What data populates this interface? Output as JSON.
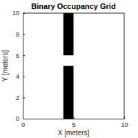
{
  "chart_data": {
    "type": "occupancy_grid",
    "title": "Binary Occupancy Grid",
    "x_label": "X [meters]",
    "y_label": "Y [meters]",
    "cells": [
      {
        "x": [
          4,
          5
        ],
        "y": [
          6,
          10
        ]
      },
      {
        "x": [
          4,
          5
        ],
        "y": [
          0,
          5
        ]
      }
    ],
    "color": "#000000",
    "xlim": [
      0,
      10
    ],
    "ylim": [
      0,
      10
    ],
    "xticks": [
      0,
      5,
      10
    ],
    "yticks": [
      0,
      2,
      4,
      6,
      8,
      10
    ]
  }
}
